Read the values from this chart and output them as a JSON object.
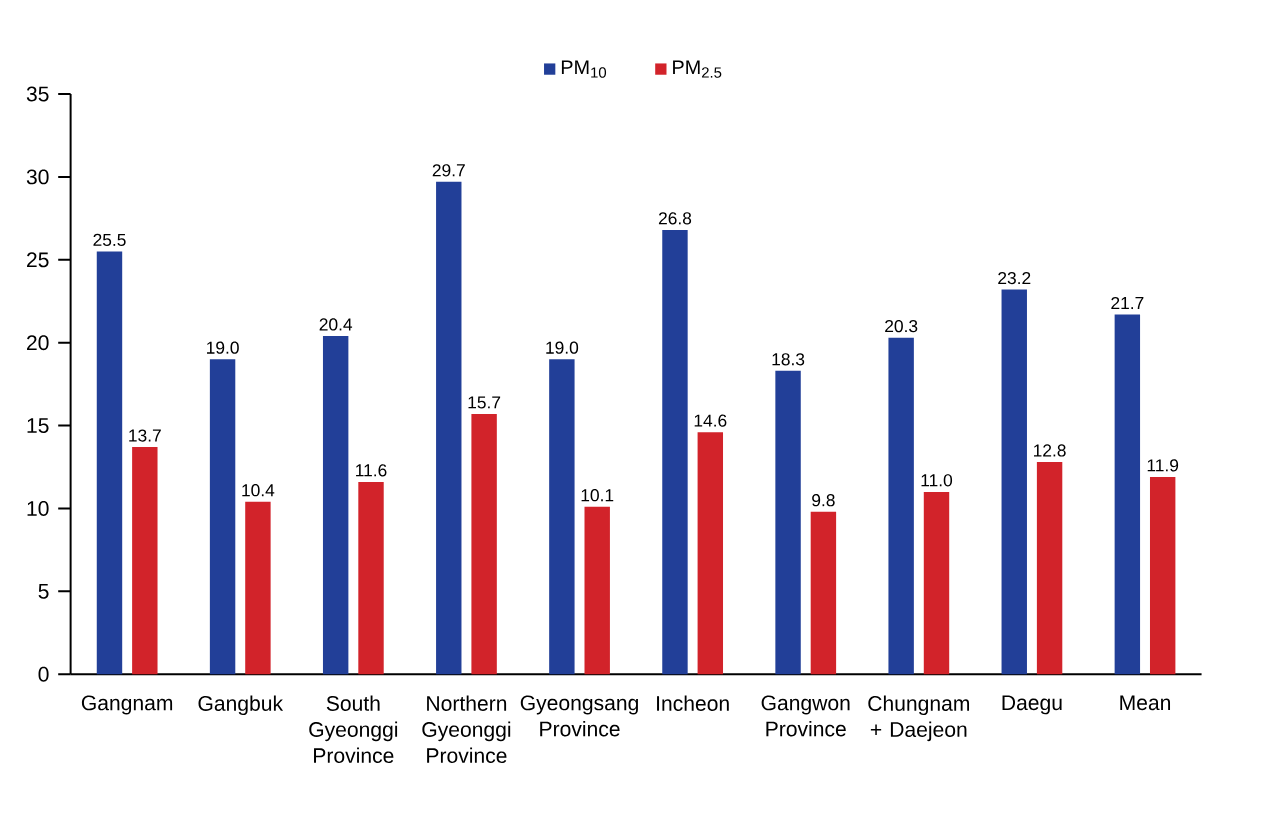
{
  "chart_data": {
    "type": "bar",
    "categories": [
      "Gangnam",
      "Gangbuk",
      "South Gyeonggi Province",
      "Northern Gyeonggi Province",
      "Gyeongsang Province",
      "Incheon",
      "Gangwon Province",
      "Chungnam + Daejeon",
      "Daegu",
      "Mean"
    ],
    "series": [
      {
        "name": "PM$_{10}$",
        "color": "#223f98",
        "values": [
          25.5,
          19.0,
          20.4,
          29.7,
          19.0,
          26.8,
          18.3,
          20.3,
          23.2,
          21.7
        ],
        "value_labels": [
          "25.5",
          "19.0",
          "20.4",
          "29.7",
          "19.0",
          "26.8",
          "18.3",
          "20.3",
          "23.2",
          "21.7"
        ]
      },
      {
        "name": "PM$_{2.5}$",
        "color": "#d2232a",
        "values": [
          13.7,
          10.4,
          11.6,
          15.7,
          10.1,
          14.6,
          9.8,
          11.0,
          12.8,
          11.9
        ],
        "value_labels": [
          "13.7",
          "10.4",
          "11.6",
          "15.7",
          "10.1",
          "14.6",
          "9.8",
          "11.0",
          "12.8",
          "11.9"
        ]
      }
    ],
    "ylim": [
      0,
      35
    ],
    "yticks": [
      0,
      5,
      10,
      15,
      20,
      25,
      30,
      35
    ],
    "legend": "top",
    "grid": false
  }
}
